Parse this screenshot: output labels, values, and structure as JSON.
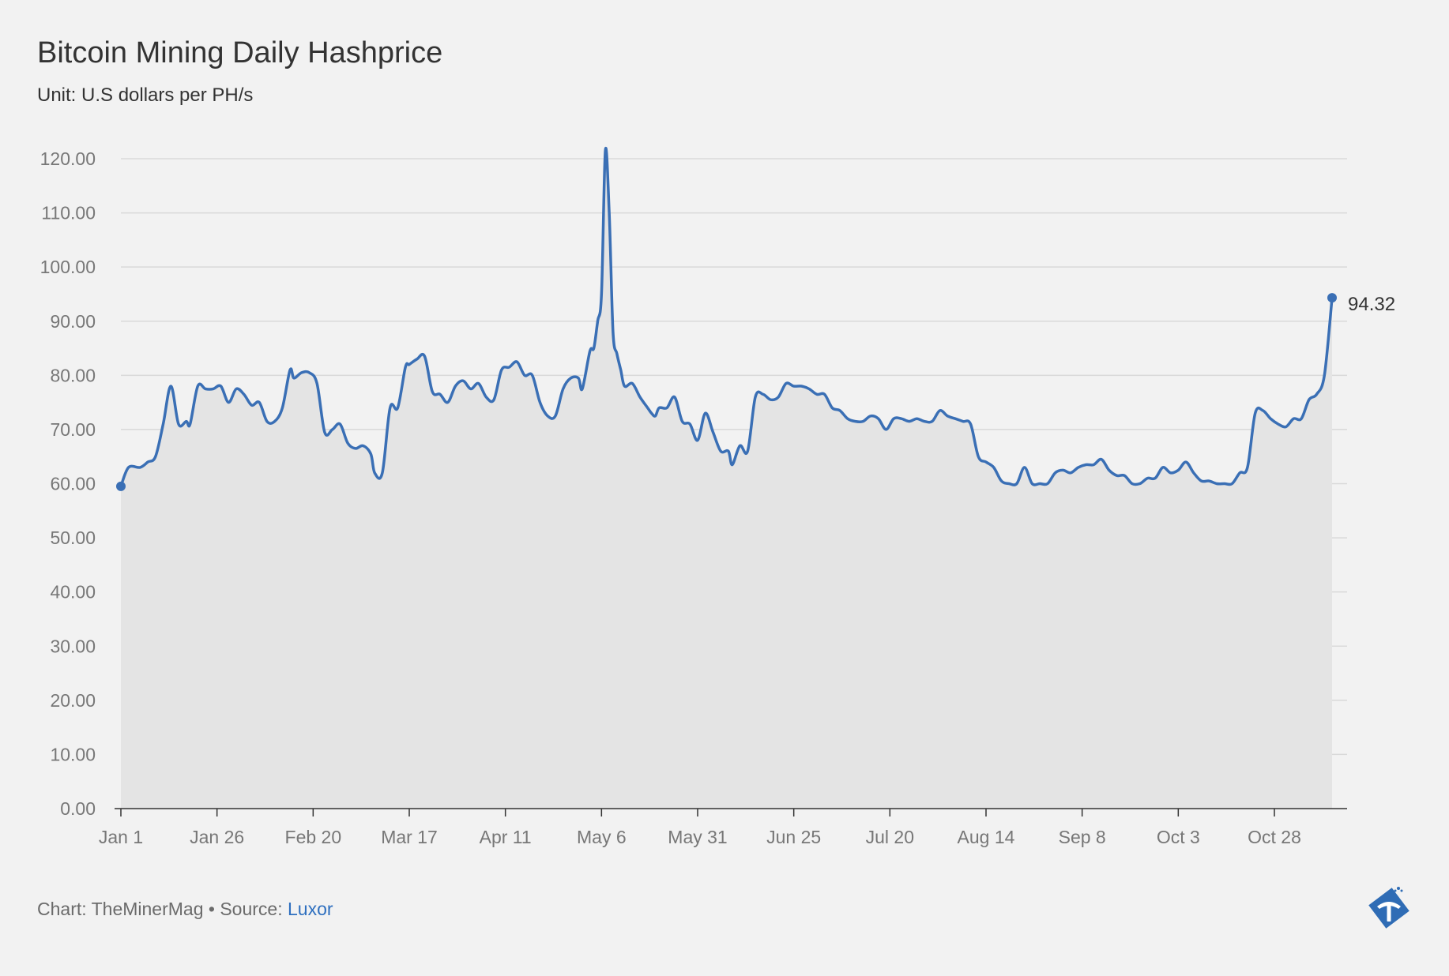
{
  "title": "Bitcoin Mining Daily Hashprice",
  "subtitle": "Unit: U.S dollars per PH/s",
  "footer": {
    "credit": "Chart: TheMinerMag • Source: ",
    "source_link": "Luxor"
  },
  "colors": {
    "line": "#3a6fb5",
    "area": "#e4e4e4",
    "grid": "#d9d9d9",
    "background": "#f2f2f2"
  },
  "chart_data": {
    "type": "area",
    "title": "Bitcoin Mining Daily Hashprice",
    "subtitle": "Unit: U.S dollars per PH/s",
    "xlabel": "",
    "ylabel": "",
    "x_axis": "date",
    "x_ticks": [
      "Jan 1",
      "Jan 26",
      "Feb 20",
      "Mar 17",
      "Apr 11",
      "May 6",
      "May 31",
      "Jun 25",
      "Jul 20",
      "Aug 14",
      "Sep 8",
      "Oct 3",
      "Oct 28"
    ],
    "y_ticks": [
      "0.00",
      "10.00",
      "20.00",
      "30.00",
      "40.00",
      "50.00",
      "60.00",
      "70.00",
      "80.00",
      "90.00",
      "100.00",
      "110.00",
      "120.00"
    ],
    "ylim": [
      0,
      120
    ],
    "grid": "horizontal",
    "legend": "none",
    "end_label": "94.32",
    "series": [
      {
        "points": [
          [
            "Jan 1",
            59.5
          ],
          [
            "Jan 3",
            63
          ],
          [
            "Jan 6",
            63
          ],
          [
            "Jan 8",
            64
          ],
          [
            "Jan 10",
            65
          ],
          [
            "Jan 12",
            71
          ],
          [
            "Jan 14",
            78
          ],
          [
            "Jan 16",
            71
          ],
          [
            "Jan 18",
            71.5
          ],
          [
            "Jan 19",
            71
          ],
          [
            "Jan 21",
            78
          ],
          [
            "Jan 23",
            77.5
          ],
          [
            "Jan 25",
            77.5
          ],
          [
            "Jan 27",
            78
          ],
          [
            "Jan 29",
            75
          ],
          [
            "Jan 31",
            77.5
          ],
          [
            "Feb 2",
            76.5
          ],
          [
            "Feb 4",
            74.5
          ],
          [
            "Feb 6",
            75
          ],
          [
            "Feb 8",
            71.5
          ],
          [
            "Feb 10",
            71.5
          ],
          [
            "Feb 12",
            74
          ],
          [
            "Feb 14",
            81
          ],
          [
            "Feb 15",
            79.5
          ],
          [
            "Feb 17",
            80.5
          ],
          [
            "Feb 19",
            80.5
          ],
          [
            "Feb 21",
            78.5
          ],
          [
            "Feb 23",
            69.5
          ],
          [
            "Feb 25",
            70
          ],
          [
            "Feb 27",
            71
          ],
          [
            "Mar 1",
            67.5
          ],
          [
            "Mar 3",
            66.5
          ],
          [
            "Mar 5",
            67
          ],
          [
            "Mar 7",
            65.5
          ],
          [
            "Mar 8",
            62
          ],
          [
            "Mar 10",
            62
          ],
          [
            "Mar 12",
            74
          ],
          [
            "Mar 14",
            74
          ],
          [
            "Mar 16",
            81.5
          ],
          [
            "Mar 17",
            82
          ],
          [
            "Mar 19",
            83
          ],
          [
            "Mar 21",
            83.5
          ],
          [
            "Mar 23",
            77
          ],
          [
            "Mar 25",
            76.5
          ],
          [
            "Mar 27",
            75
          ],
          [
            "Mar 29",
            78
          ],
          [
            "Mar 31",
            79
          ],
          [
            "Apr 2",
            77.5
          ],
          [
            "Apr 4",
            78.5
          ],
          [
            "Apr 6",
            76
          ],
          [
            "Apr 8",
            75.5
          ],
          [
            "Apr 10",
            81
          ],
          [
            "Apr 12",
            81.5
          ],
          [
            "Apr 14",
            82.5
          ],
          [
            "Apr 16",
            80
          ],
          [
            "Apr 18",
            80
          ],
          [
            "Apr 20",
            75
          ],
          [
            "Apr 22",
            72.5
          ],
          [
            "Apr 24",
            72.5
          ],
          [
            "Apr 26",
            77.5
          ],
          [
            "Apr 28",
            79.5
          ],
          [
            "Apr 30",
            79.5
          ],
          [
            "May 1",
            77.5
          ],
          [
            "May 3",
            84.5
          ],
          [
            "May 4",
            85
          ],
          [
            "May 5",
            90
          ],
          [
            "May 6",
            95
          ],
          [
            "May 7",
            121.5
          ],
          [
            "May 8",
            110
          ],
          [
            "May 9",
            88
          ],
          [
            "May 10",
            84
          ],
          [
            "May 11",
            81
          ],
          [
            "May 12",
            78
          ],
          [
            "May 14",
            78.5
          ],
          [
            "May 16",
            76
          ],
          [
            "May 18",
            74
          ],
          [
            "May 19",
            73
          ],
          [
            "May 20",
            72.5
          ],
          [
            "May 21",
            74
          ],
          [
            "May 23",
            74
          ],
          [
            "May 25",
            76
          ],
          [
            "May 27",
            71.5
          ],
          [
            "May 29",
            71
          ],
          [
            "May 31",
            68
          ],
          [
            "Jun 2",
            73
          ],
          [
            "Jun 4",
            69.5
          ],
          [
            "Jun 6",
            66
          ],
          [
            "Jun 8",
            66
          ],
          [
            "Jun 9",
            63.5
          ],
          [
            "Jun 11",
            67
          ],
          [
            "Jun 13",
            66
          ],
          [
            "Jun 15",
            76
          ],
          [
            "Jun 17",
            76.5
          ],
          [
            "Jun 19",
            75.5
          ],
          [
            "Jun 21",
            76
          ],
          [
            "Jun 23",
            78.5
          ],
          [
            "Jun 25",
            78
          ],
          [
            "Jun 27",
            78
          ],
          [
            "Jun 29",
            77.5
          ],
          [
            "Jul 1",
            76.5
          ],
          [
            "Jul 3",
            76.5
          ],
          [
            "Jul 5",
            74
          ],
          [
            "Jul 7",
            73.5
          ],
          [
            "Jul 9",
            72
          ],
          [
            "Jul 11",
            71.5
          ],
          [
            "Jul 13",
            71.5
          ],
          [
            "Jul 15",
            72.5
          ],
          [
            "Jul 17",
            72
          ],
          [
            "Jul 19",
            70
          ],
          [
            "Jul 21",
            72
          ],
          [
            "Jul 23",
            72
          ],
          [
            "Jul 25",
            71.5
          ],
          [
            "Jul 27",
            72
          ],
          [
            "Jul 29",
            71.5
          ],
          [
            "Jul 31",
            71.5
          ],
          [
            "Aug 2",
            73.5
          ],
          [
            "Aug 4",
            72.5
          ],
          [
            "Aug 6",
            72
          ],
          [
            "Aug 8",
            71.5
          ],
          [
            "Aug 10",
            71
          ],
          [
            "Aug 12",
            65
          ],
          [
            "Aug 14",
            64
          ],
          [
            "Aug 16",
            63
          ],
          [
            "Aug 18",
            60.5
          ],
          [
            "Aug 20",
            60
          ],
          [
            "Aug 22",
            60
          ],
          [
            "Aug 24",
            63
          ],
          [
            "Aug 26",
            60
          ],
          [
            "Aug 28",
            60
          ],
          [
            "Aug 30",
            60
          ],
          [
            "Sep 1",
            62
          ],
          [
            "Sep 3",
            62.5
          ],
          [
            "Sep 5",
            62
          ],
          [
            "Sep 7",
            63
          ],
          [
            "Sep 9",
            63.5
          ],
          [
            "Sep 11",
            63.5
          ],
          [
            "Sep 13",
            64.5
          ],
          [
            "Sep 15",
            62.5
          ],
          [
            "Sep 17",
            61.5
          ],
          [
            "Sep 19",
            61.5
          ],
          [
            "Sep 21",
            60
          ],
          [
            "Sep 23",
            60
          ],
          [
            "Sep 25",
            61
          ],
          [
            "Sep 27",
            61
          ],
          [
            "Sep 29",
            63
          ],
          [
            "Oct 1",
            62
          ],
          [
            "Oct 3",
            62.5
          ],
          [
            "Oct 5",
            64
          ],
          [
            "Oct 7",
            62
          ],
          [
            "Oct 9",
            60.5
          ],
          [
            "Oct 11",
            60.5
          ],
          [
            "Oct 13",
            60
          ],
          [
            "Oct 15",
            60
          ],
          [
            "Oct 17",
            60
          ],
          [
            "Oct 19",
            62
          ],
          [
            "Oct 21",
            63
          ],
          [
            "Oct 23",
            73
          ],
          [
            "Oct 25",
            73.5
          ],
          [
            "Oct 27",
            72
          ],
          [
            "Oct 29",
            71
          ],
          [
            "Oct 31",
            70.5
          ],
          [
            "Nov 2",
            72
          ],
          [
            "Nov 4",
            72
          ],
          [
            "Nov 6",
            75.5
          ],
          [
            "Nov 8",
            76.5
          ],
          [
            "Nov 10",
            80
          ],
          [
            "Nov 12",
            94.32
          ]
        ]
      }
    ]
  }
}
